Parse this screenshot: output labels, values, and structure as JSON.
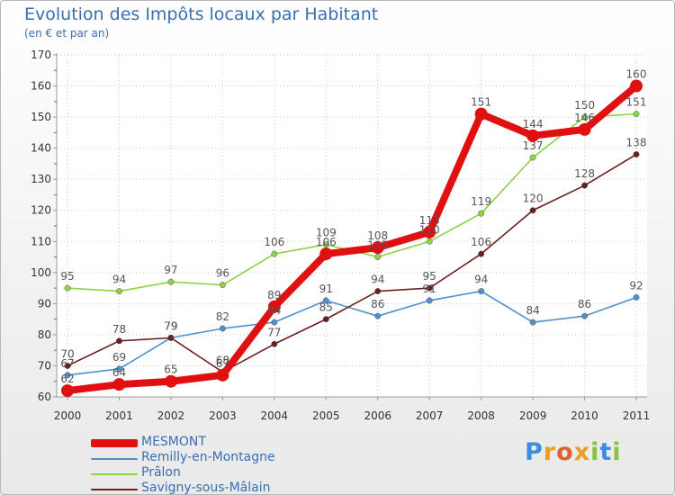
{
  "chart_data": {
    "type": "line",
    "title": "Evolution des Impôts locaux par Habitant",
    "subtitle": "(en € et par an)",
    "xlabel": "",
    "ylabel": "",
    "ylim": [
      60,
      170
    ],
    "yticks": [
      60,
      70,
      80,
      90,
      100,
      110,
      120,
      130,
      140,
      150,
      160,
      170
    ],
    "categories": [
      "2000",
      "2001",
      "2002",
      "2003",
      "2004",
      "2005",
      "2006",
      "2007",
      "2008",
      "2009",
      "2010",
      "2011"
    ],
    "series": [
      {
        "name": "MESMONT",
        "color": "#e01010",
        "values": [
          62,
          64,
          65,
          67,
          89,
          106,
          108,
          113,
          151,
          144,
          146,
          160
        ],
        "labels": [
          "62",
          "64",
          "65",
          "67",
          "89",
          "106",
          "108",
          "113",
          "151",
          "144",
          "146",
          "160"
        ]
      },
      {
        "name": "Remilly-en-Montagne",
        "color": "#4f90cc",
        "values": [
          67,
          69,
          79,
          82,
          84,
          91,
          86,
          91,
          94,
          84,
          86,
          92
        ],
        "labels": [
          "67",
          "69",
          "79",
          "82",
          "84",
          "91",
          "86",
          "91",
          "94",
          "84",
          "86",
          "92"
        ]
      },
      {
        "name": "Prâlon",
        "color": "#8ed246",
        "values": [
          95,
          94,
          97,
          96,
          106,
          109,
          105,
          110,
          119,
          137,
          150,
          151
        ],
        "labels": [
          "95",
          "94",
          "97",
          "96",
          "106",
          "109",
          "105",
          "110",
          "119",
          "137",
          "150",
          "151"
        ]
      },
      {
        "name": "Savigny-sous-Mâlain",
        "color": "#6b1e1e",
        "values": [
          70,
          78,
          79,
          68,
          77,
          85,
          94,
          95,
          106,
          120,
          128,
          138
        ],
        "labels": [
          "70",
          "78",
          "79",
          "68",
          "77",
          "85",
          "94",
          "95",
          "106",
          "120",
          "128",
          "138"
        ]
      }
    ],
    "legend": "bottom-left"
  },
  "logo": {
    "text": "Proxiti",
    "parts": [
      "P",
      "r",
      "o",
      "x",
      "i",
      "t",
      "i"
    ]
  }
}
